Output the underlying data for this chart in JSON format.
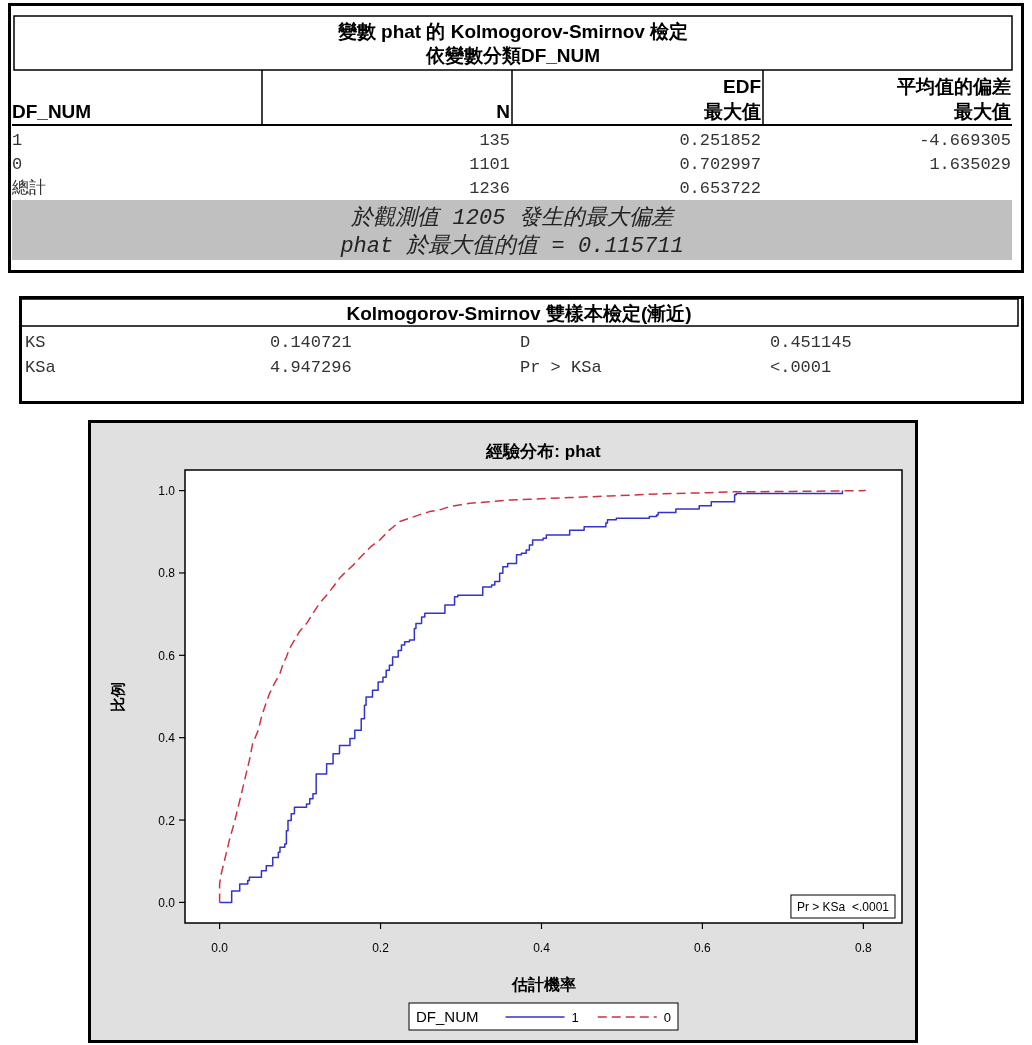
{
  "chart_data": [
    {
      "type": "other",
      "title": "變數 phat 的 Kolmogorov-Smirnov 檢定",
      "subtitle": "依變數分類DF_NUM",
      "categories": [
        "DF_NUM",
        "N",
        "EDF 最大值",
        "平均值的偏差最大值"
      ],
      "cell_labels": [
        [
          "1",
          "135",
          "0.251852",
          "-4.669305"
        ],
        [
          "0",
          "1101",
          "0.702997",
          "1.635029"
        ],
        [
          "總計",
          "1236",
          "0.653722",
          null
        ]
      ],
      "annotations": [
        "於觀測值 1205 發生的最大偏差",
        "phat 於最大值的值 = 0.115711"
      ]
    },
    {
      "type": "other",
      "title": "Kolmogorov-Smirnov 雙樣本檢定(漸近)",
      "cell_labels": [
        [
          "KS",
          "0.140721",
          "D",
          "0.451145"
        ],
        [
          "KSa",
          "4.947296",
          "Pr > KSa",
          "<.0001"
        ]
      ]
    },
    {
      "type": "step",
      "title": "經驗分布: phat",
      "xlabel": "估計機率",
      "ylabel": "比例",
      "legend_title": "DF_NUM",
      "legend": "bottom",
      "xlim": [
        -0.043,
        0.848
      ],
      "xticks": [
        {
          "value": 0,
          "label": "0.0"
        },
        0.2,
        0.4,
        0.6,
        0.8
      ],
      "ylim": [
        -0.05,
        1.05
      ],
      "yticks": [
        {
          "value": 0,
          "label": "0.0"
        },
        0.2,
        0.4,
        0.6,
        0.8,
        {
          "value": 1,
          "label": "1.0"
        }
      ],
      "annotations": [
        "Pr > KSa  <.0001"
      ],
      "series": [
        {
          "name": "1",
          "color": "#3333cc",
          "line_style": "solid",
          "x": [
            0,
            0.015,
            0.025,
            0.035,
            0.037,
            0.052,
            0.058,
            0.066,
            0.073,
            0.075,
            0.081,
            0.083,
            0.085,
            0.089,
            0.093,
            0.108,
            0.112,
            0.116,
            0.12,
            0.133,
            0.141,
            0.149,
            0.162,
            0.168,
            0.176,
            0.18,
            0.182,
            0.19,
            0.197,
            0.203,
            0.207,
            0.211,
            0.215,
            0.222,
            0.226,
            0.23,
            0.236,
            0.242,
            0.244,
            0.251,
            0.255,
            0.28,
            0.292,
            0.296,
            0.327,
            0.338,
            0.342,
            0.348,
            0.352,
            0.358,
            0.369,
            0.375,
            0.381,
            0.385,
            0.389,
            0.402,
            0.406,
            0.435,
            0.453,
            0.48,
            0.482,
            0.493,
            0.534,
            0.543,
            0.545,
            0.567,
            0.596,
            0.611,
            0.64,
            0.642,
            0.774
          ],
          "values": [
            0,
            0.028,
            0.045,
            0.053,
            0.061,
            0.077,
            0.089,
            0.109,
            0.122,
            0.134,
            0.142,
            0.174,
            0.199,
            0.215,
            0.231,
            0.239,
            0.252,
            0.264,
            0.312,
            0.337,
            0.361,
            0.381,
            0.398,
            0.418,
            0.446,
            0.479,
            0.499,
            0.515,
            0.535,
            0.547,
            0.564,
            0.576,
            0.596,
            0.612,
            0.625,
            0.633,
            0.637,
            0.665,
            0.677,
            0.693,
            0.702,
            0.722,
            0.742,
            0.746,
            0.766,
            0.771,
            0.779,
            0.799,
            0.815,
            0.823,
            0.844,
            0.848,
            0.856,
            0.868,
            0.88,
            0.884,
            0.892,
            0.904,
            0.912,
            0.921,
            0.929,
            0.933,
            0.937,
            0.941,
            0.947,
            0.955,
            0.963,
            0.973,
            0.99,
            0.993,
            1.0
          ]
        },
        {
          "name": "0",
          "type": "line",
          "color": "#cc3344",
          "line_style": "dashed",
          "x": [
            0,
            0,
            0.002,
            0.006,
            0.012,
            0.019,
            0.025,
            0.031,
            0.037,
            0.041,
            0.048,
            0.052,
            0.056,
            0.062,
            0.068,
            0.075,
            0.079,
            0.083,
            0.087,
            0.093,
            0.099,
            0.108,
            0.116,
            0.124,
            0.133,
            0.141,
            0.149,
            0.157,
            0.166,
            0.178,
            0.188,
            0.199,
            0.211,
            0.224,
            0.236,
            0.248,
            0.261,
            0.273,
            0.286,
            0.298,
            0.311,
            0.335,
            0.36,
            0.385,
            0.41,
            0.435,
            0.485,
            0.547,
            0.609,
            0.64,
            0.712,
            0.803
          ],
          "values": [
            0,
            0.045,
            0.069,
            0.101,
            0.15,
            0.199,
            0.247,
            0.296,
            0.345,
            0.385,
            0.418,
            0.45,
            0.474,
            0.507,
            0.531,
            0.556,
            0.58,
            0.596,
            0.617,
            0.637,
            0.657,
            0.677,
            0.702,
            0.726,
            0.746,
            0.766,
            0.787,
            0.803,
            0.819,
            0.844,
            0.864,
            0.88,
            0.904,
            0.925,
            0.933,
            0.941,
            0.949,
            0.953,
            0.961,
            0.965,
            0.969,
            0.973,
            0.977,
            0.979,
            0.981,
            0.983,
            0.987,
            0.992,
            0.995,
            0.997,
            0.998,
            1.0
          ]
        }
      ]
    }
  ]
}
